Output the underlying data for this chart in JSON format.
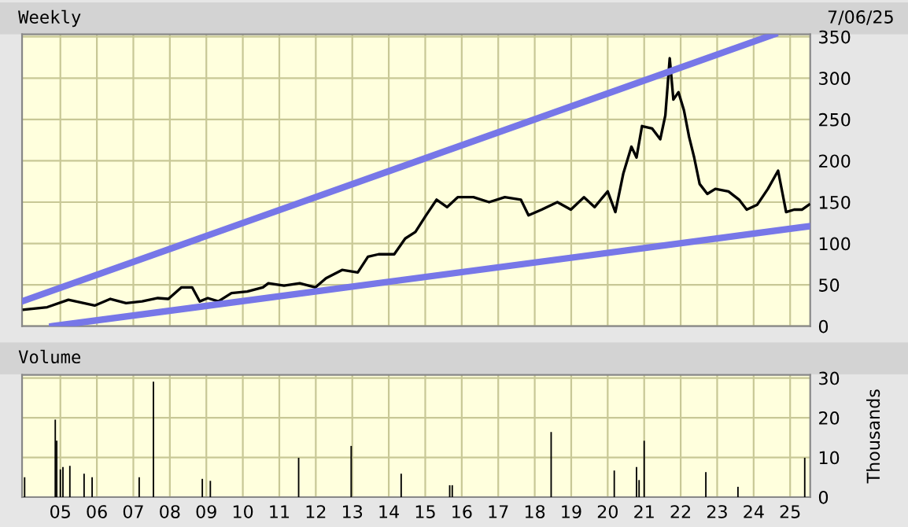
{
  "chart_data": [
    {
      "type": "line",
      "title": "Weekly",
      "annotations": [
        "7/06/25"
      ],
      "xlim": [
        2003.95,
        2025.55
      ],
      "ylim": [
        0,
        353
      ],
      "yticks": [
        0,
        50,
        100,
        150,
        200,
        250,
        300,
        350
      ],
      "xticks": [
        2005,
        2006,
        2007,
        2008,
        2009,
        2010,
        2011,
        2012,
        2013,
        2014,
        2015,
        2016,
        2017,
        2018,
        2019,
        2020,
        2021,
        2022,
        2023,
        2024,
        2025
      ],
      "tick_labels": "y",
      "grid": true,
      "series": [
        {
          "color": "#000000",
          "x": [
            2004.0,
            2004.64,
            2005.22,
            2005.94,
            2006.37,
            2006.8,
            2007.24,
            2007.67,
            2007.96,
            2008.32,
            2008.61,
            2008.82,
            2009.04,
            2009.33,
            2009.69,
            2010.12,
            2010.55,
            2010.7,
            2011.13,
            2011.56,
            2011.99,
            2012.28,
            2012.72,
            2013.15,
            2013.43,
            2013.72,
            2014.15,
            2014.45,
            2014.73,
            2015.02,
            2015.31,
            2015.6,
            2015.89,
            2016.32,
            2016.75,
            2017.18,
            2017.62,
            2017.83,
            2018.19,
            2018.62,
            2018.99,
            2019.35,
            2019.64,
            2020.0,
            2020.21,
            2020.43,
            2020.65,
            2020.79,
            2020.94,
            2021.22,
            2021.44,
            2021.58,
            2021.7,
            2021.8,
            2021.94,
            2022.09,
            2022.23,
            2022.37,
            2022.52,
            2022.73,
            2022.95,
            2023.31,
            2023.6,
            2023.81,
            2024.1,
            2024.39,
            2024.67,
            2024.89,
            2025.11,
            2025.33,
            2025.52
          ],
          "values": [
            20,
            23,
            32,
            25,
            33,
            28,
            30,
            34,
            33,
            47,
            47,
            30,
            34,
            30,
            40,
            42,
            47,
            52,
            49,
            52,
            47,
            58,
            68,
            65,
            84,
            87,
            87,
            106,
            114,
            134,
            153,
            144,
            156,
            156,
            150,
            156,
            153,
            134,
            141,
            150,
            141,
            156,
            144,
            163,
            138,
            185,
            217,
            204,
            242,
            239,
            226,
            255,
            324,
            274,
            283,
            261,
            229,
            204,
            172,
            160,
            166,
            163,
            153,
            141,
            147,
            166,
            188,
            138,
            141,
            141,
            147
          ]
        },
        {
          "type": "line",
          "color": "#7777e8",
          "x": [
            2003.95,
            2024.57
          ],
          "values": [
            30,
            353
          ]
        },
        {
          "type": "line",
          "color": "#7777e8",
          "x": [
            2004.78,
            2025.55
          ],
          "values": [
            0,
            121
          ]
        }
      ]
    },
    {
      "type": "bar",
      "title": "Volume",
      "ylabel": "Thousands",
      "xlim": [
        2003.95,
        2025.55
      ],
      "ylim": [
        0,
        30.8
      ],
      "yticks": [
        0,
        10,
        20,
        30
      ],
      "xticks": [
        {
          "value": 2005,
          "label": "05"
        },
        {
          "value": 2006,
          "label": "06"
        },
        {
          "value": 2007,
          "label": "07"
        },
        {
          "value": 2008,
          "label": "08"
        },
        {
          "value": 2009,
          "label": "09"
        },
        {
          "value": 2010,
          "label": "10"
        },
        {
          "value": 2011,
          "label": "11"
        },
        {
          "value": 2012,
          "label": "12"
        },
        {
          "value": 2013,
          "label": "13"
        },
        {
          "value": 2014,
          "label": "14"
        },
        {
          "value": 2015,
          "label": "15"
        },
        {
          "value": 2016,
          "label": "16"
        },
        {
          "value": 2017,
          "label": "17"
        },
        {
          "value": 2018,
          "label": "18"
        },
        {
          "value": 2019,
          "label": "19"
        },
        {
          "value": 2020,
          "label": "20"
        },
        {
          "value": 2021,
          "label": "21"
        },
        {
          "value": 2022,
          "label": "22"
        },
        {
          "value": 2023,
          "label": "23"
        },
        {
          "value": 2024,
          "label": "24"
        },
        {
          "value": 2025,
          "label": "25"
        }
      ],
      "grid": true,
      "series": [
        {
          "color": "#000000",
          "x": [
            2004.02,
            2004.86,
            2004.9,
            2005.0,
            2005.07,
            2005.26,
            2005.65,
            2005.87,
            2007.16,
            2007.55,
            2008.89,
            2009.11,
            2011.53,
            2012.97,
            2014.34,
            2015.67,
            2015.74,
            2018.45,
            2020.18,
            2020.79,
            2020.86,
            2021.0,
            2022.69,
            2023.57,
            2025.4
          ],
          "values": [
            5.0,
            19.5,
            14.2,
            7.0,
            7.6,
            7.9,
            5.9,
            5.0,
            5.0,
            29.1,
            4.6,
            4.1,
            9.9,
            12.9,
            5.9,
            3.0,
            3.0,
            16.4,
            6.7,
            7.6,
            4.3,
            14.2,
            6.3,
            2.6,
            9.9
          ]
        }
      ]
    }
  ]
}
